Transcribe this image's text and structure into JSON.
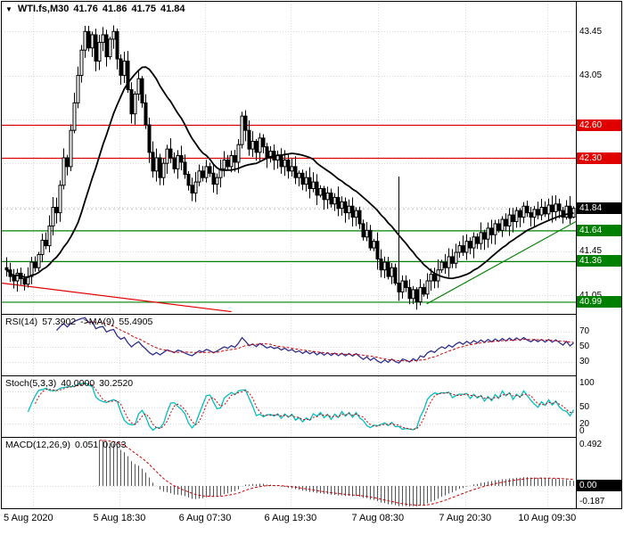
{
  "header": {
    "toggle_icon": "▼",
    "symbol": "WTI.fs,M30",
    "open": "41.76",
    "high": "41.86",
    "low": "41.75",
    "close": "41.84"
  },
  "colors": {
    "background": "#ffffff",
    "border": "#000000",
    "grid": "#d8d8d8",
    "bull_fill": "#ffffff",
    "bear_fill": "#000000",
    "candle_border": "#000000",
    "ma_line": "#000000",
    "resistance": "#e00000",
    "support": "#008000",
    "current_badge": "#000000",
    "rsi_line": "#2e2e8f",
    "rsi_ma": "#cc0000",
    "stoch_k": "#00bfbf",
    "stoch_d": "#cc0000",
    "macd_hist": "#555555",
    "macd_signal": "#cc0000"
  },
  "price_axis": {
    "labels": [
      {
        "text": "43.45",
        "price": 43.45,
        "type": "plain"
      },
      {
        "text": "43.05",
        "price": 43.05,
        "type": "plain"
      },
      {
        "text": "42.60",
        "price": 42.6,
        "type": "res"
      },
      {
        "text": "42.30",
        "price": 42.3,
        "type": "res"
      },
      {
        "text": "41.84",
        "price": 41.84,
        "type": "cur"
      },
      {
        "text": "41.64",
        "price": 41.64,
        "type": "sup"
      },
      {
        "text": "41.45",
        "price": 41.45,
        "type": "plain"
      },
      {
        "text": "41.36",
        "price": 41.36,
        "type": "sup"
      },
      {
        "text": "41.05",
        "price": 41.05,
        "type": "plain"
      },
      {
        "text": "40.99",
        "price": 40.99,
        "type": "sup"
      }
    ]
  },
  "indicator_axes": {
    "rsi": [
      {
        "text": "70",
        "value": 70,
        "type": "plain"
      },
      {
        "text": "50",
        "value": 50,
        "type": "plain"
      },
      {
        "text": "30",
        "value": 30,
        "type": "plain"
      }
    ],
    "stoch": [
      {
        "text": "100",
        "value": 100,
        "type": "plain"
      },
      {
        "text": "50",
        "value": 50,
        "type": "plain"
      },
      {
        "text": "20",
        "value": 20,
        "type": "plain"
      },
      {
        "text": "0",
        "value": 0,
        "type": "plain"
      }
    ],
    "macd": [
      {
        "text": "0.492",
        "value": 0.492,
        "type": "plain"
      },
      {
        "text": "0.00",
        "value": 0,
        "type": "cur"
      },
      {
        "text": "-0.187",
        "value": -0.187,
        "type": "plain"
      }
    ]
  },
  "time_axis": {
    "labels": [
      {
        "text": "5 Aug 2020",
        "pos": 0.054
      },
      {
        "text": "5 Aug 18:30",
        "pos": 0.205
      },
      {
        "text": "6 Aug 07:30",
        "pos": 0.354
      },
      {
        "text": "6 Aug 19:30",
        "pos": 0.503
      },
      {
        "text": "7 Aug 08:30",
        "pos": 0.655
      },
      {
        "text": "7 Aug 20:30",
        "pos": 0.807
      },
      {
        "text": "10 Aug 09:30",
        "pos": 0.95
      }
    ]
  },
  "panel_labels": {
    "rsi": {
      "name": "RSI(14)",
      "value": "57.3902",
      "arrow": "->MA(9)",
      "ma_value": "55.4905"
    },
    "stoch": {
      "name": "Stoch(5,3,3)",
      "value": "40.0000",
      "signal_value": "30.2520"
    },
    "macd": {
      "name": "MACD(12,26,9)",
      "value": "0.051",
      "signal_value": "0.063"
    }
  },
  "chart_data": {
    "type": "candlestick",
    "title": "WTI.fs,M30",
    "timeframe": "M30",
    "ylim": [
      40.88,
      43.72
    ],
    "grid_prices": [
      43.45,
      43.05,
      42.65,
      42.25,
      41.85,
      41.45,
      41.05
    ],
    "first_open": 41.3,
    "closes": [
      41.28,
      41.22,
      41.18,
      41.25,
      41.2,
      41.15,
      41.22,
      41.35,
      41.3,
      41.42,
      41.55,
      41.5,
      41.68,
      41.85,
      41.8,
      42.05,
      42.3,
      42.22,
      42.55,
      42.8,
      43.05,
      43.28,
      43.45,
      43.3,
      43.42,
      43.18,
      43.35,
      43.42,
      43.22,
      43.38,
      43.45,
      43.2,
      43.05,
      43.18,
      42.92,
      42.7,
      42.88,
      43.02,
      42.8,
      42.6,
      42.35,
      42.18,
      42.3,
      42.12,
      42.25,
      42.38,
      42.3,
      42.2,
      42.32,
      42.26,
      42.15,
      42.05,
      41.98,
      42.08,
      42.18,
      42.12,
      42.22,
      42.16,
      42.06,
      42.12,
      42.2,
      42.28,
      42.22,
      42.32,
      42.26,
      42.42,
      42.68,
      42.55,
      42.38,
      42.45,
      42.35,
      42.48,
      42.4,
      42.3,
      42.36,
      42.28,
      42.32,
      42.22,
      42.28,
      42.18,
      42.22,
      42.12,
      42.16,
      42.06,
      42.12,
      42.02,
      42.08,
      41.96,
      42.02,
      41.92,
      41.98,
      41.88,
      41.94,
      41.84,
      41.9,
      41.8,
      41.86,
      41.76,
      41.82,
      41.7,
      41.58,
      41.64,
      41.48,
      41.54,
      41.38,
      41.28,
      41.35,
      41.22,
      41.3,
      41.16,
      41.08,
      41.18,
      41.12,
      41.02,
      41.1,
      40.99,
      41.12,
      41.06,
      41.18,
      41.24,
      41.18,
      41.28,
      41.35,
      41.3,
      41.4,
      41.34,
      41.44,
      41.5,
      41.44,
      41.54,
      41.48,
      41.58,
      41.52,
      41.62,
      41.56,
      41.66,
      41.6,
      41.7,
      41.64,
      41.74,
      41.68,
      41.78,
      41.72,
      41.82,
      41.76,
      41.86,
      41.8,
      41.76,
      41.83,
      41.78,
      41.85,
      41.79,
      41.87,
      41.81,
      41.88,
      41.82,
      41.76,
      41.86,
      41.75,
      41.84
    ],
    "spikes": [
      {
        "index": 110,
        "high": 42.13
      }
    ],
    "ohlc_last": {
      "open": 41.76,
      "high": 41.86,
      "low": 41.75,
      "close": 41.84
    },
    "overlay_ma_period": 21,
    "current_price": 41.84,
    "levels": {
      "resistance": [
        42.6,
        42.3
      ],
      "support": [
        41.64,
        41.36,
        40.99
      ]
    },
    "trendlines": [
      {
        "kind": "resistance",
        "x1": 0.0,
        "p1": 41.16,
        "x2": 0.4,
        "p2": 40.9
      },
      {
        "kind": "support",
        "x1": 0.74,
        "p1": 40.97,
        "x2": 1.0,
        "p2": 41.72
      }
    ],
    "indicators": {
      "rsi": {
        "period": 14,
        "ma_period": 9,
        "range": [
          12,
          92
        ],
        "levels": [
          70,
          50,
          30
        ],
        "last": 57.3902,
        "ma_last": 55.4905
      },
      "stoch": {
        "k": 5,
        "d": 3,
        "slowing": 3,
        "range": [
          -4,
          107
        ],
        "levels": [
          80,
          50,
          20
        ],
        "last": 40.0,
        "signal_last": 30.252
      },
      "macd": {
        "fast": 12,
        "slow": 26,
        "signal": 9,
        "range": [
          -0.26,
          0.56
        ],
        "last": 0.051,
        "signal_last": 0.063
      }
    }
  }
}
